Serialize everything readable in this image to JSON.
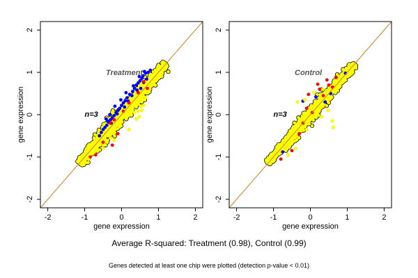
{
  "caption": "Average R-squared: Treatment (0.98), Control (0.99)",
  "footnote": "Genes detected at least one chip were plotted (detection p-value < 0.01)",
  "colors": {
    "series_a": "#0000ff",
    "series_b": "#ff0000",
    "series_c": "#ffff00",
    "reference_line": "#cc8833",
    "axis": "#000000"
  },
  "chart_data": [
    {
      "type": "scatter",
      "title": "Treatment",
      "annotation": "n=3",
      "xlabel": "gene expression",
      "ylabel": "gene expression",
      "xlim": [
        -2.2,
        2.2
      ],
      "ylim": [
        -2.2,
        2.2
      ],
      "xticks": [
        "-2",
        "-1",
        "0",
        "1",
        "2"
      ],
      "yticks": [
        "-2",
        "-1",
        "0",
        "1",
        "2"
      ],
      "reference_line": {
        "slope": 1,
        "intercept": 0
      },
      "cloud": {
        "x_range": [
          -1.15,
          1.2
        ],
        "spread": 0.07
      },
      "series": [
        {
          "color": "blue",
          "x": [
            0.65,
            0.62,
            0.58,
            0.55,
            0.5,
            0.45,
            0.4,
            0.35,
            0.3,
            0.22,
            0.15,
            0.1,
            0.05,
            0.0,
            -0.05,
            -0.1,
            -0.15,
            -0.2,
            -0.25,
            -0.3,
            -0.35,
            -0.4,
            -0.45,
            -0.5,
            -0.55,
            -0.6,
            0.72,
            0.78,
            0.68,
            0.48,
            0.32,
            0.12,
            -0.02,
            -0.18,
            -0.32,
            -0.42,
            0.52,
            0.28,
            0.08,
            -0.12,
            -0.28,
            0.42,
            0.18,
            -0.08,
            -0.38,
            0.6
          ],
          "y": [
            0.98,
            1.02,
            0.92,
            0.86,
            0.8,
            0.75,
            0.7,
            0.62,
            0.55,
            0.48,
            0.4,
            0.33,
            0.28,
            0.22,
            0.15,
            0.1,
            0.05,
            -0.02,
            -0.08,
            -0.12,
            -0.18,
            -0.25,
            -0.3,
            -0.35,
            -0.42,
            -0.5,
            1.0,
            1.05,
            0.84,
            0.9,
            0.68,
            0.52,
            0.35,
            0.2,
            0.0,
            -0.1,
            0.62,
            0.45,
            0.18,
            0.02,
            -0.2,
            0.58,
            0.32,
            0.12,
            -0.15,
            0.76
          ]
        },
        {
          "color": "red",
          "x": [
            -0.7,
            -0.5,
            -0.3,
            -0.2,
            -0.1,
            0.2,
            0.45,
            0.7,
            -0.25,
            0.6,
            -0.85,
            0.05
          ],
          "y": [
            -0.95,
            -0.65,
            -0.2,
            -0.12,
            -0.45,
            0.28,
            0.52,
            0.62,
            -0.72,
            0.78,
            -1.0,
            0.08
          ]
        },
        {
          "color": "yellow",
          "x": [
            0.45,
            0.52,
            0.6,
            0.48,
            0.55,
            0.35,
            0.4,
            0.3,
            0.42,
            0.65,
            0.2,
            -0.3,
            -0.2,
            -0.5,
            -0.9
          ],
          "y": [
            0.08,
            0.2,
            0.22,
            -0.05,
            0.1,
            0.05,
            -0.1,
            0.15,
            0.28,
            0.4,
            -0.35,
            -0.55,
            -0.6,
            -0.8,
            -1.05
          ]
        }
      ]
    },
    {
      "type": "scatter",
      "title": "Control",
      "annotation": "n=3",
      "xlabel": "gene expression",
      "ylabel": "gene expression",
      "xlim": [
        -2.2,
        2.2
      ],
      "ylim": [
        -2.2,
        2.2
      ],
      "xticks": [
        "-2",
        "-1",
        "0",
        "1",
        "2"
      ],
      "yticks": [
        "-2",
        "-1",
        "0",
        "1",
        "2"
      ],
      "reference_line": {
        "slope": 1,
        "intercept": 0
      },
      "cloud": {
        "x_range": [
          -1.15,
          1.2
        ],
        "spread": 0.055
      },
      "series": [
        {
          "color": "blue",
          "x": [
            0.4,
            0.55,
            -0.75,
            -0.2,
            0.95,
            0.15
          ],
          "y": [
            0.3,
            0.5,
            -0.88,
            0.32,
            0.98,
            0.42
          ]
        },
        {
          "color": "red",
          "x": [
            0.2,
            0.25,
            -0.3,
            0.5,
            0.6,
            -0.5,
            0.05,
            0.35,
            -0.8,
            0.7,
            -0.1,
            0.45,
            -0.05,
            -0.2
          ],
          "y": [
            0.72,
            0.6,
            -0.45,
            0.7,
            0.65,
            -0.85,
            0.05,
            0.45,
            -1.05,
            0.88,
            0.15,
            0.82,
            0.48,
            -0.2
          ]
        },
        {
          "color": "yellow",
          "x": [
            0.1,
            -0.35,
            0.55,
            0.6,
            0.62,
            0.48,
            -0.1,
            0.25,
            -0.4,
            -0.6,
            0.3,
            0.35,
            -0.15,
            0.85
          ],
          "y": [
            0.52,
            0.3,
            0.42,
            -0.15,
            -0.3,
            0.1,
            -0.35,
            0.4,
            -0.8,
            -0.95,
            -0.05,
            0.6,
            0.35,
            0.95
          ]
        }
      ]
    }
  ]
}
